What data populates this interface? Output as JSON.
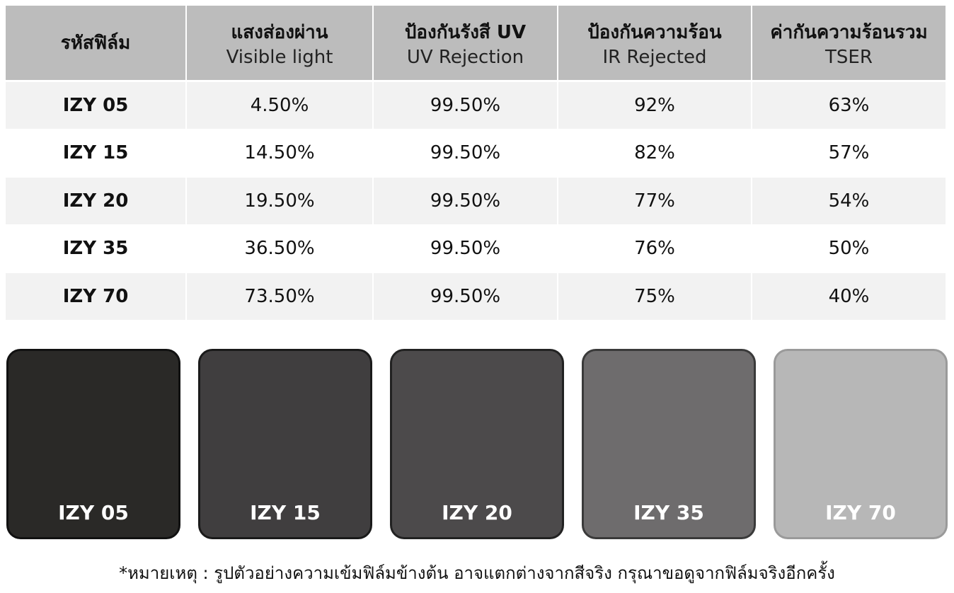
{
  "table": {
    "header": [
      [
        "รหัสฟิล์ม"
      ],
      [
        "แสงส่องผ่าน",
        "Visible light"
      ],
      [
        "ป้องกันรังสี UV",
        "UV Rejection"
      ],
      [
        "ป้องกันความร้อน",
        "IR Rejected"
      ],
      [
        "ค่ากันความร้อนรวม",
        "TSER"
      ]
    ],
    "rows": [
      [
        "IZY 05",
        "4.50%",
        "99.50%",
        "92%",
        "63%"
      ],
      [
        "IZY 15",
        "14.50%",
        "99.50%",
        "82%",
        "57%"
      ],
      [
        "IZY 20",
        "19.50%",
        "99.50%",
        "77%",
        "54%"
      ],
      [
        "IZY 35",
        "36.50%",
        "99.50%",
        "76%",
        "50%"
      ],
      [
        "IZY 70",
        "73.50%",
        "99.50%",
        "75%",
        "40%"
      ]
    ]
  },
  "swatches": [
    "IZY 05",
    "IZY 15",
    "IZY 20",
    "IZY 35",
    "IZY 70"
  ],
  "note": "*หมายเหตุ : รูปตัวอย่างความเข้มฟิล์มข้างต้น อาจแตกต่างจากสีจริง กรุณาขอดูจากฟิล์มจริงอีกครั้ง"
}
